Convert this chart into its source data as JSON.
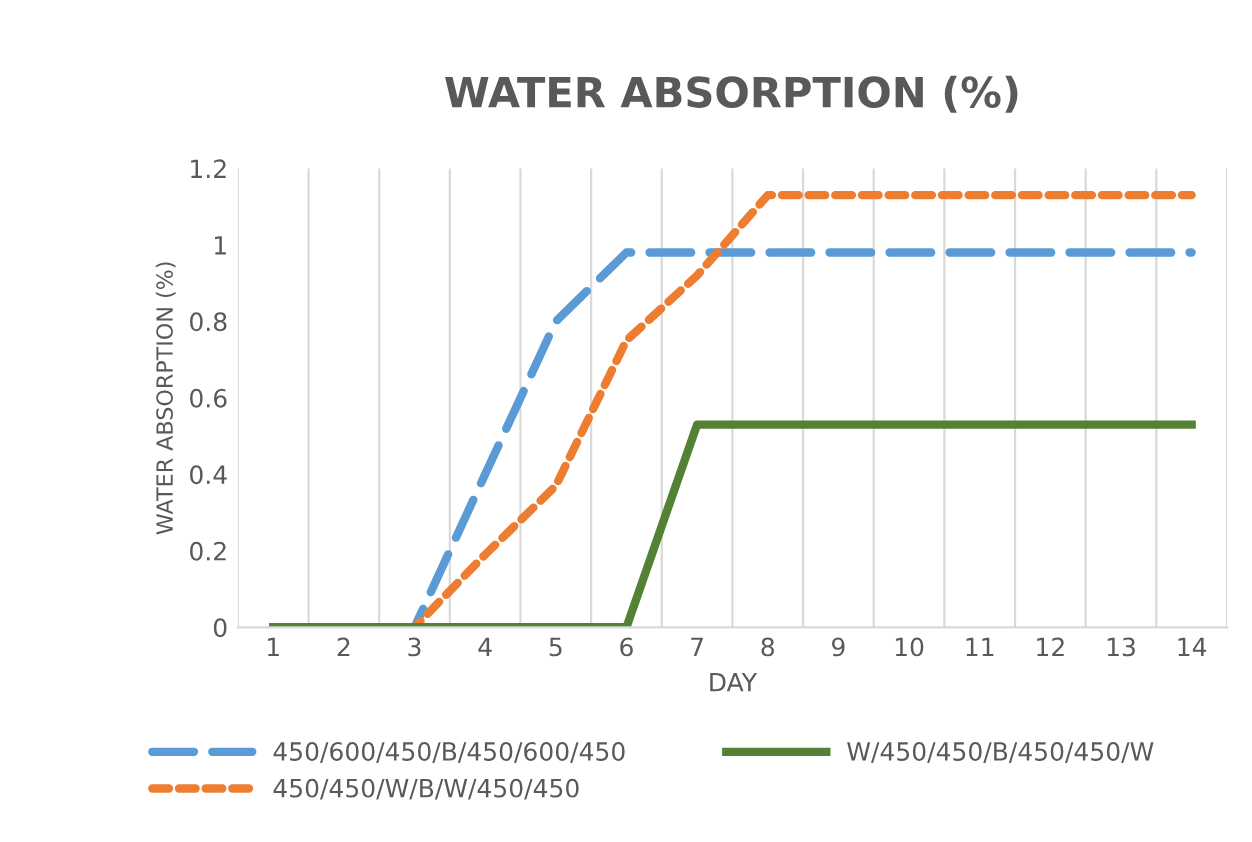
{
  "chart_data": {
    "type": "line",
    "title": "WATER ABSORPTION (%)",
    "xlabel": "DAY",
    "ylabel": "WATER ABSORPTION (%)",
    "categories": [
      "1",
      "2",
      "3",
      "4",
      "5",
      "6",
      "7",
      "8",
      "9",
      "10",
      "11",
      "12",
      "13",
      "14"
    ],
    "series": [
      {
        "name": "450/600/450/B/450/600/450",
        "color": "#5b9bd5",
        "line_style": "dashed",
        "values": [
          0,
          0,
          0,
          0.4,
          0.8,
          0.98,
          0.98,
          0.98,
          0.98,
          0.98,
          0.98,
          0.98,
          0.98,
          0.98
        ]
      },
      {
        "name": "450/450/W/B/W/450/450",
        "color": "#ed7d31",
        "line_style": "dotted",
        "values": [
          0,
          0,
          0,
          0.19,
          0.37,
          0.75,
          0.92,
          1.13,
          1.13,
          1.13,
          1.13,
          1.13,
          1.13,
          1.13
        ]
      },
      {
        "name": "W/450/450/B/450/450/W",
        "color": "#548235",
        "line_style": "solid",
        "values": [
          0,
          0,
          0,
          0,
          0,
          0,
          0.53,
          0.53,
          0.53,
          0.53,
          0.53,
          0.53,
          0.53,
          0.53
        ]
      }
    ],
    "ylim": [
      0,
      1.2
    ],
    "yticks": [
      0,
      0.2,
      0.4,
      0.6,
      0.8,
      1,
      1.2
    ],
    "grid": "x",
    "legend": "bottom",
    "marker": "none"
  }
}
